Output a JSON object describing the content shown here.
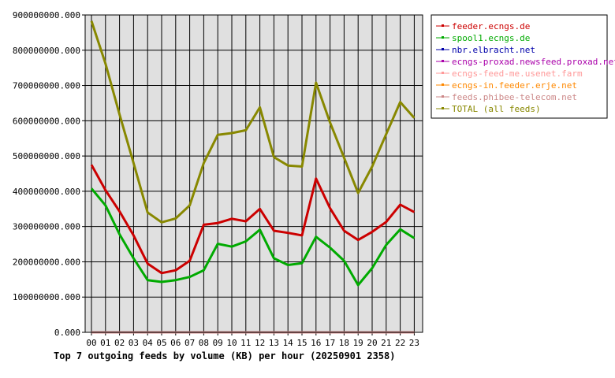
{
  "chart_data": {
    "type": "line",
    "title": "Top 7 outgoing feeds by volume (KB) per hour (20250901 2358)",
    "categories": [
      "00",
      "01",
      "02",
      "03",
      "04",
      "05",
      "06",
      "07",
      "08",
      "09",
      "10",
      "11",
      "12",
      "13",
      "14",
      "15",
      "16",
      "17",
      "18",
      "19",
      "20",
      "21",
      "22",
      "23"
    ],
    "ylim": [
      0,
      900000000
    ],
    "yticks": [
      "0.000",
      "100000000.000",
      "200000000.000",
      "300000000.000",
      "400000000.000",
      "500000000.000",
      "600000000.000",
      "700000000.000",
      "800000000.000",
      "900000000.000"
    ],
    "grid": true,
    "legend_position": "right",
    "series": [
      {
        "name": "feeder.ecngs.de",
        "color": "#cc0000",
        "values": [
          475000000,
          403000000,
          343000000,
          275000000,
          195000000,
          168000000,
          176000000,
          203000000,
          305000000,
          310000000,
          322000000,
          315000000,
          350000000,
          288000000,
          282000000,
          275000000,
          436000000,
          352000000,
          288000000,
          262000000,
          285000000,
          313000000,
          362000000,
          341000000
        ]
      },
      {
        "name": "spool1.ecngs.de",
        "color": "#00aa00",
        "values": [
          408000000,
          360000000,
          278000000,
          210000000,
          148000000,
          143000000,
          148000000,
          157000000,
          176000000,
          251000000,
          243000000,
          258000000,
          291000000,
          210000000,
          191000000,
          196000000,
          271000000,
          240000000,
          203000000,
          134000000,
          182000000,
          248000000,
          292000000,
          267000000
        ]
      },
      {
        "name": "nbr.elbracht.net",
        "color": "#0000aa",
        "values": [
          0,
          0,
          0,
          0,
          0,
          0,
          0,
          0,
          0,
          0,
          0,
          0,
          0,
          0,
          0,
          0,
          0,
          0,
          0,
          0,
          0,
          0,
          0,
          0
        ]
      },
      {
        "name": "ecngs-proxad.newsfeed.proxad.net",
        "color": "#aa00aa",
        "values": [
          0,
          0,
          0,
          0,
          0,
          0,
          0,
          0,
          0,
          0,
          0,
          0,
          0,
          0,
          0,
          0,
          0,
          0,
          0,
          0,
          0,
          0,
          0,
          0
        ]
      },
      {
        "name": "ecngs-feed-me.usenet.farm",
        "color": "#ff9999",
        "values": [
          0,
          0,
          0,
          0,
          0,
          0,
          0,
          0,
          0,
          0,
          0,
          0,
          0,
          0,
          0,
          0,
          0,
          0,
          0,
          0,
          0,
          0,
          0,
          0
        ]
      },
      {
        "name": "ecngs-in.feeder.erje.net",
        "color": "#ff8800",
        "values": [
          0,
          0,
          0,
          0,
          0,
          0,
          0,
          0,
          0,
          0,
          0,
          0,
          0,
          0,
          0,
          0,
          0,
          0,
          0,
          0,
          0,
          0,
          0,
          0
        ]
      },
      {
        "name": "feeds.phibee-telecom.net",
        "color": "#cc8888",
        "values": [
          0,
          0,
          0,
          0,
          0,
          0,
          0,
          0,
          0,
          0,
          0,
          0,
          0,
          0,
          0,
          0,
          0,
          0,
          0,
          0,
          0,
          0,
          0,
          0
        ]
      },
      {
        "name": "TOTAL (all feeds)",
        "color": "#888800",
        "values": [
          883000000,
          762000000,
          618000000,
          480000000,
          340000000,
          312000000,
          323000000,
          360000000,
          480000000,
          560000000,
          565000000,
          573000000,
          638000000,
          497000000,
          473000000,
          470000000,
          708000000,
          595000000,
          495000000,
          395000000,
          470000000,
          562000000,
          653000000,
          608000000
        ]
      }
    ]
  }
}
